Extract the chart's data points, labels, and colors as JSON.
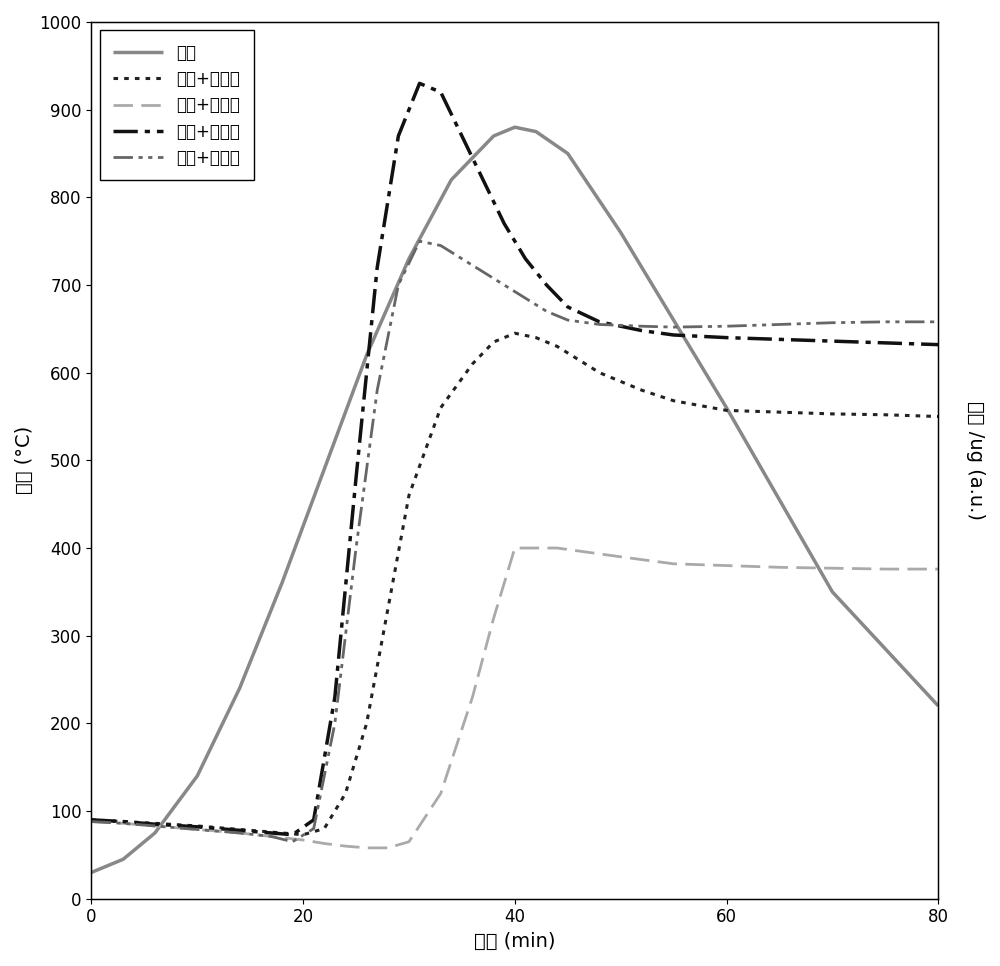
{
  "title": "",
  "xlabel": "时间 (min)",
  "ylabel_left": "温度 (°C)",
  "ylabel_right": "质量 /ug (a.u.)",
  "xlim": [
    0,
    80
  ],
  "ylim": [
    0,
    1000
  ],
  "xticks": [
    0,
    20,
    40,
    60,
    80
  ],
  "yticks": [
    0,
    100,
    200,
    300,
    400,
    500,
    600,
    700,
    800,
    900,
    1000
  ],
  "background_color": "#ffffff",
  "series": [
    {
      "label": "温度",
      "color": "#888888",
      "linestyle": "solid",
      "linewidth": 2.5,
      "x": [
        0,
        3,
        6,
        10,
        14,
        18,
        22,
        26,
        30,
        34,
        38,
        40,
        42,
        45,
        50,
        55,
        60,
        65,
        70,
        75,
        80
      ],
      "y": [
        30,
        45,
        75,
        140,
        240,
        360,
        490,
        620,
        730,
        820,
        870,
        880,
        875,
        850,
        760,
        660,
        560,
        455,
        350,
        285,
        220
      ]
    },
    {
      "label": "玻璃+礸化铅",
      "color": "#222222",
      "linestyle": "dotted",
      "linewidth": 2.2,
      "x": [
        0,
        3,
        6,
        10,
        14,
        17,
        20,
        22,
        24,
        26,
        28,
        30,
        33,
        36,
        38,
        40,
        42,
        44,
        48,
        52,
        55,
        60,
        65,
        70,
        75,
        80
      ],
      "y": [
        90,
        88,
        86,
        83,
        79,
        76,
        73,
        80,
        120,
        200,
        330,
        460,
        560,
        610,
        635,
        645,
        640,
        630,
        600,
        580,
        568,
        557,
        555,
        553,
        552,
        550
      ]
    },
    {
      "label": "玻璃+礸化銀",
      "color": "#aaaaaa",
      "linestyle": "dashed",
      "linewidth": 2.0,
      "x": [
        0,
        3,
        6,
        10,
        14,
        17,
        20,
        22,
        24,
        26,
        28,
        30,
        33,
        36,
        38,
        40,
        44,
        50,
        55,
        60,
        65,
        70,
        75,
        80
      ],
      "y": [
        88,
        86,
        83,
        79,
        75,
        71,
        67,
        63,
        60,
        58,
        58,
        65,
        120,
        230,
        320,
        400,
        400,
        390,
        382,
        380,
        378,
        377,
        376,
        376
      ]
    },
    {
      "label": "玻璃+礸化锤",
      "color": "#111111",
      "linestyle": "dashdot",
      "linewidth": 2.5,
      "x": [
        0,
        3,
        6,
        10,
        14,
        17,
        19,
        21,
        23,
        25,
        27,
        29,
        31,
        33,
        35,
        37,
        39,
        41,
        43,
        45,
        48,
        52,
        55,
        60,
        65,
        70,
        75,
        80
      ],
      "y": [
        90,
        88,
        85,
        82,
        78,
        75,
        73,
        90,
        230,
        480,
        720,
        870,
        930,
        920,
        870,
        820,
        770,
        730,
        700,
        675,
        658,
        648,
        643,
        640,
        638,
        636,
        634,
        632
      ]
    },
    {
      "label": "玻璃+礸化铋",
      "color": "#666666",
      "linestyle": "dashdotdotted",
      "linewidth": 2.0,
      "x": [
        0,
        3,
        6,
        10,
        14,
        17,
        19,
        21,
        23,
        25,
        27,
        29,
        31,
        33,
        35,
        37,
        39,
        41,
        43,
        45,
        48,
        52,
        55,
        60,
        65,
        70,
        75,
        80
      ],
      "y": [
        88,
        86,
        83,
        79,
        75,
        71,
        65,
        80,
        200,
        400,
        580,
        700,
        750,
        745,
        730,
        715,
        700,
        685,
        670,
        660,
        655,
        653,
        652,
        653,
        655,
        657,
        658,
        658
      ]
    }
  ]
}
